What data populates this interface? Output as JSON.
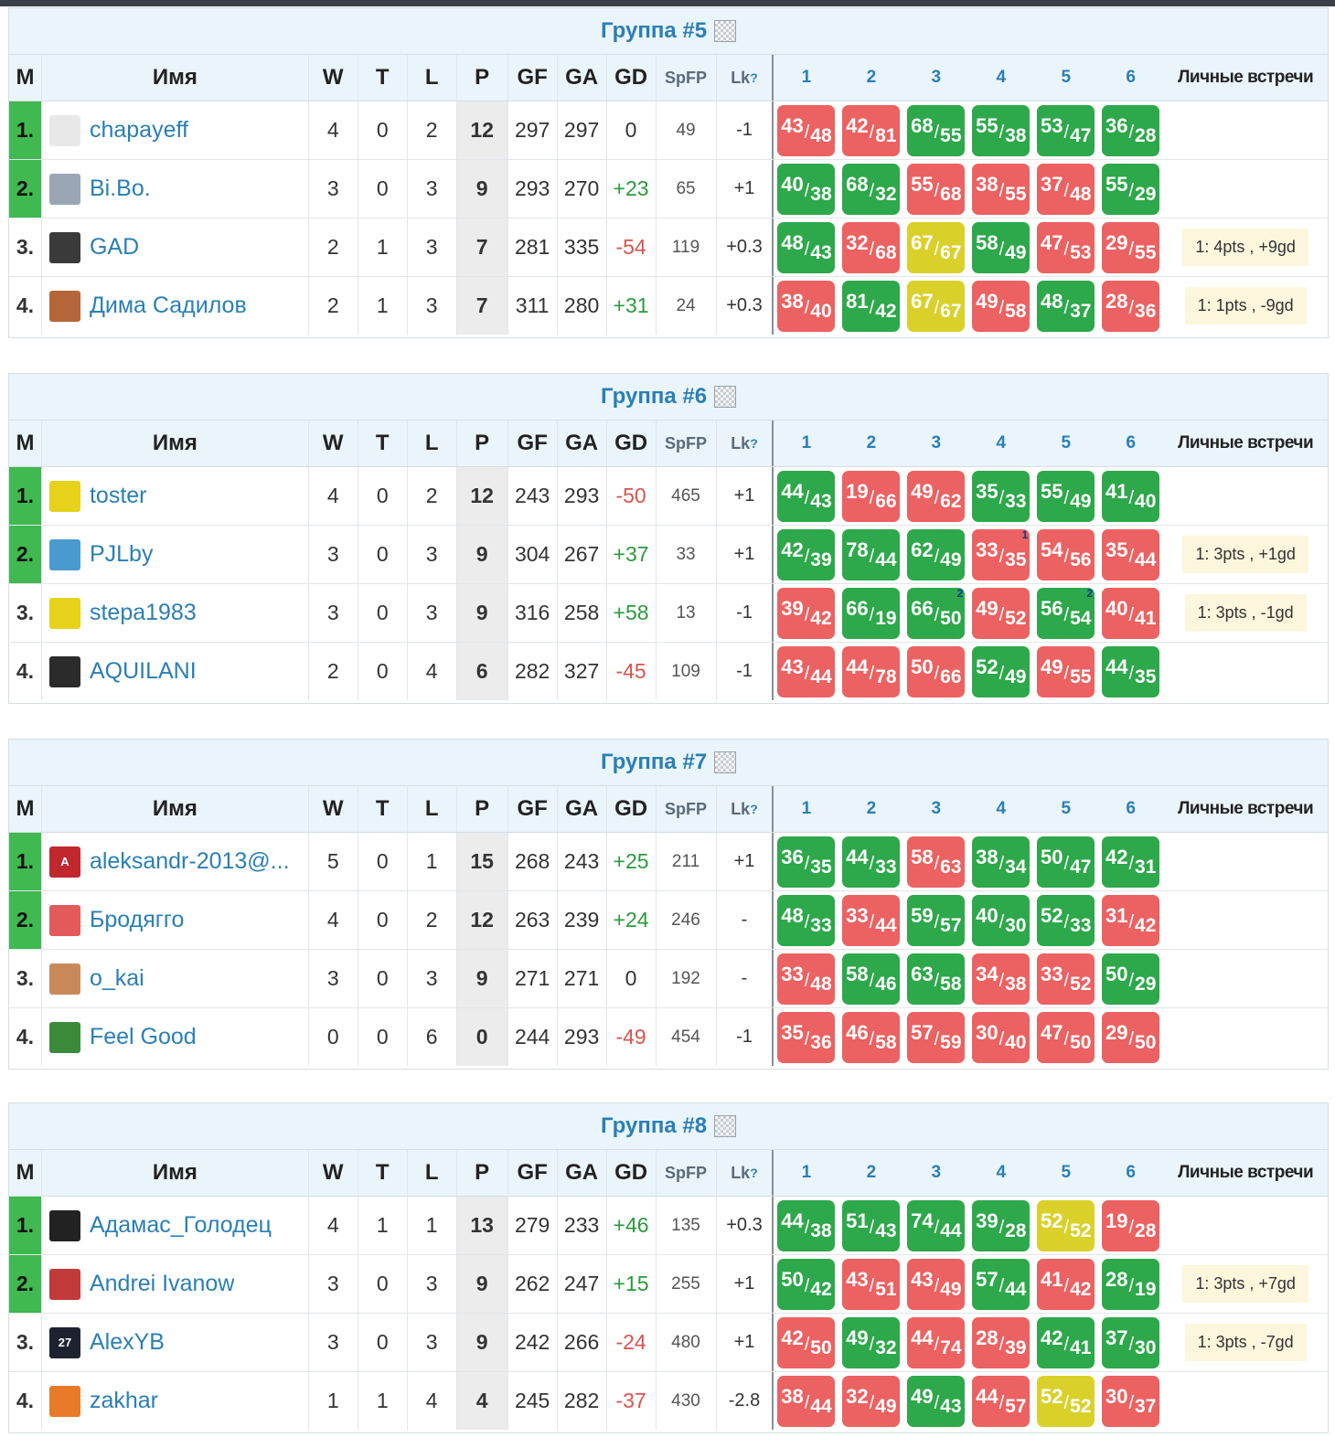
{
  "headers": {
    "m": "M",
    "name": "Имя",
    "w": "W",
    "t": "T",
    "l": "L",
    "p": "P",
    "gf": "GF",
    "ga": "GA",
    "gd": "GD",
    "spfp": "SpFP",
    "lk": "Lk",
    "lk_sup": "?",
    "cols": [
      "1",
      "2",
      "3",
      "4",
      "5",
      "6"
    ],
    "lv": "Личные встречи"
  },
  "groups": [
    {
      "title": "Группа #5",
      "rows": [
        {
          "rank": "1.",
          "qual": true,
          "avatar_color": "#e8e8e8",
          "avatar_text": "",
          "name": "chapayeff",
          "w": "4",
          "t": "0",
          "l": "2",
          "p": "12",
          "gf": "297",
          "ga": "297",
          "gd": "0",
          "gd_color": "#333",
          "spfp": "49",
          "lk": "-1",
          "res": [
            {
              "a": "43",
              "b": "48",
              "c": "red"
            },
            {
              "a": "42",
              "b": "81",
              "c": "red"
            },
            {
              "a": "68",
              "b": "55",
              "c": "green"
            },
            {
              "a": "55",
              "b": "38",
              "c": "green"
            },
            {
              "a": "53",
              "b": "47",
              "c": "green"
            },
            {
              "a": "36",
              "b": "28",
              "c": "green"
            }
          ],
          "lv": ""
        },
        {
          "rank": "2.",
          "qual": true,
          "avatar_color": "#9aa6b5",
          "avatar_text": "",
          "name": "Bi.Bo.",
          "w": "3",
          "t": "0",
          "l": "3",
          "p": "9",
          "gf": "293",
          "ga": "270",
          "gd": "+23",
          "gd_color": "#2a9a3a",
          "spfp": "65",
          "lk": "+1",
          "res": [
            {
              "a": "40",
              "b": "38",
              "c": "green"
            },
            {
              "a": "68",
              "b": "32",
              "c": "green"
            },
            {
              "a": "55",
              "b": "68",
              "c": "red"
            },
            {
              "a": "38",
              "b": "55",
              "c": "red"
            },
            {
              "a": "37",
              "b": "48",
              "c": "red"
            },
            {
              "a": "55",
              "b": "29",
              "c": "green"
            }
          ],
          "lv": ""
        },
        {
          "rank": "3.",
          "qual": false,
          "avatar_color": "#3a3a3a",
          "avatar_text": "",
          "name": "GAD",
          "w": "2",
          "t": "1",
          "l": "3",
          "p": "7",
          "gf": "281",
          "ga": "335",
          "gd": "-54",
          "gd_color": "#d9534f",
          "spfp": "119",
          "lk": "+0.3",
          "res": [
            {
              "a": "48",
              "b": "43",
              "c": "green"
            },
            {
              "a": "32",
              "b": "68",
              "c": "red"
            },
            {
              "a": "67",
              "b": "67",
              "c": "yellow"
            },
            {
              "a": "58",
              "b": "49",
              "c": "green"
            },
            {
              "a": "47",
              "b": "53",
              "c": "red"
            },
            {
              "a": "29",
              "b": "55",
              "c": "red"
            }
          ],
          "lv": "1: 4pts , +9gd"
        },
        {
          "rank": "4.",
          "qual": false,
          "avatar_color": "#b5653a",
          "avatar_text": "",
          "name": "Дима Садилов",
          "w": "2",
          "t": "1",
          "l": "3",
          "p": "7",
          "gf": "311",
          "ga": "280",
          "gd": "+31",
          "gd_color": "#2a9a3a",
          "spfp": "24",
          "lk": "+0.3",
          "res": [
            {
              "a": "38",
              "b": "40",
              "c": "red"
            },
            {
              "a": "81",
              "b": "42",
              "c": "green"
            },
            {
              "a": "67",
              "b": "67",
              "c": "yellow"
            },
            {
              "a": "49",
              "b": "58",
              "c": "red"
            },
            {
              "a": "48",
              "b": "37",
              "c": "green"
            },
            {
              "a": "28",
              "b": "36",
              "c": "red"
            }
          ],
          "lv": "1: 1pts , -9gd"
        }
      ]
    },
    {
      "title": "Группа #6",
      "rows": [
        {
          "rank": "1.",
          "qual": true,
          "avatar_color": "#e6d21a",
          "avatar_text": "",
          "name": "toster",
          "w": "4",
          "t": "0",
          "l": "2",
          "p": "12",
          "gf": "243",
          "ga": "293",
          "gd": "-50",
          "gd_color": "#d9534f",
          "spfp": "465",
          "lk": "+1",
          "res": [
            {
              "a": "44",
              "b": "43",
              "c": "green"
            },
            {
              "a": "19",
              "b": "66",
              "c": "red"
            },
            {
              "a": "49",
              "b": "62",
              "c": "red"
            },
            {
              "a": "35",
              "b": "33",
              "c": "green"
            },
            {
              "a": "55",
              "b": "49",
              "c": "green"
            },
            {
              "a": "41",
              "b": "40",
              "c": "green"
            }
          ],
          "lv": ""
        },
        {
          "rank": "2.",
          "qual": true,
          "avatar_color": "#4a9ad0",
          "avatar_text": "",
          "name": "PJLby",
          "w": "3",
          "t": "0",
          "l": "3",
          "p": "9",
          "gf": "304",
          "ga": "267",
          "gd": "+37",
          "gd_color": "#2a9a3a",
          "spfp": "33",
          "lk": "+1",
          "res": [
            {
              "a": "42",
              "b": "39",
              "c": "green"
            },
            {
              "a": "78",
              "b": "44",
              "c": "green"
            },
            {
              "a": "62",
              "b": "49",
              "c": "green"
            },
            {
              "a": "33",
              "b": "35",
              "c": "red",
              "x": "1"
            },
            {
              "a": "54",
              "b": "56",
              "c": "red"
            },
            {
              "a": "35",
              "b": "44",
              "c": "red"
            }
          ],
          "lv": "1: 3pts , +1gd"
        },
        {
          "rank": "3.",
          "qual": false,
          "avatar_color": "#e6d21a",
          "avatar_text": "",
          "name": "stepa1983",
          "w": "3",
          "t": "0",
          "l": "3",
          "p": "9",
          "gf": "316",
          "ga": "258",
          "gd": "+58",
          "gd_color": "#2a9a3a",
          "spfp": "13",
          "lk": "-1",
          "res": [
            {
              "a": "39",
              "b": "42",
              "c": "red"
            },
            {
              "a": "66",
              "b": "19",
              "c": "green"
            },
            {
              "a": "66",
              "b": "50",
              "c": "green",
              "x": "2"
            },
            {
              "a": "49",
              "b": "52",
              "c": "red"
            },
            {
              "a": "56",
              "b": "54",
              "c": "green",
              "x": "2"
            },
            {
              "a": "40",
              "b": "41",
              "c": "red"
            }
          ],
          "lv": "1: 3pts , -1gd"
        },
        {
          "rank": "4.",
          "qual": false,
          "avatar_color": "#2b2b2b",
          "avatar_text": "",
          "name": "AQUILANI",
          "w": "2",
          "t": "0",
          "l": "4",
          "p": "6",
          "gf": "282",
          "ga": "327",
          "gd": "-45",
          "gd_color": "#d9534f",
          "spfp": "109",
          "lk": "-1",
          "res": [
            {
              "a": "43",
              "b": "44",
              "c": "red"
            },
            {
              "a": "44",
              "b": "78",
              "c": "red"
            },
            {
              "a": "50",
              "b": "66",
              "c": "red"
            },
            {
              "a": "52",
              "b": "49",
              "c": "green"
            },
            {
              "a": "49",
              "b": "55",
              "c": "red"
            },
            {
              "a": "44",
              "b": "35",
              "c": "green"
            }
          ],
          "lv": ""
        }
      ]
    },
    {
      "title": "Группа #7",
      "rows": [
        {
          "rank": "1.",
          "qual": true,
          "avatar_color": "#c0282d",
          "avatar_text": "A",
          "name": "aleksandr-2013@...",
          "w": "5",
          "t": "0",
          "l": "1",
          "p": "15",
          "gf": "268",
          "ga": "243",
          "gd": "+25",
          "gd_color": "#2a9a3a",
          "spfp": "211",
          "lk": "+1",
          "res": [
            {
              "a": "36",
              "b": "35",
              "c": "green"
            },
            {
              "a": "44",
              "b": "33",
              "c": "green"
            },
            {
              "a": "58",
              "b": "63",
              "c": "red"
            },
            {
              "a": "38",
              "b": "34",
              "c": "green"
            },
            {
              "a": "50",
              "b": "47",
              "c": "green"
            },
            {
              "a": "42",
              "b": "31",
              "c": "green"
            }
          ],
          "lv": ""
        },
        {
          "rank": "2.",
          "qual": true,
          "avatar_color": "#e35a5a",
          "avatar_text": "",
          "name": "Бродягго",
          "w": "4",
          "t": "0",
          "l": "2",
          "p": "12",
          "gf": "263",
          "ga": "239",
          "gd": "+24",
          "gd_color": "#2a9a3a",
          "spfp": "246",
          "lk": "-",
          "res": [
            {
              "a": "48",
              "b": "33",
              "c": "green"
            },
            {
              "a": "33",
              "b": "44",
              "c": "red"
            },
            {
              "a": "59",
              "b": "57",
              "c": "green"
            },
            {
              "a": "40",
              "b": "30",
              "c": "green"
            },
            {
              "a": "52",
              "b": "33",
              "c": "green"
            },
            {
              "a": "31",
              "b": "42",
              "c": "red"
            }
          ],
          "lv": ""
        },
        {
          "rank": "3.",
          "qual": false,
          "avatar_color": "#c9885a",
          "avatar_text": "",
          "name": "o_kai",
          "w": "3",
          "t": "0",
          "l": "3",
          "p": "9",
          "gf": "271",
          "ga": "271",
          "gd": "0",
          "gd_color": "#333",
          "spfp": "192",
          "lk": "-",
          "res": [
            {
              "a": "33",
              "b": "48",
              "c": "red"
            },
            {
              "a": "58",
              "b": "46",
              "c": "green"
            },
            {
              "a": "63",
              "b": "58",
              "c": "green"
            },
            {
              "a": "34",
              "b": "38",
              "c": "red"
            },
            {
              "a": "33",
              "b": "52",
              "c": "red"
            },
            {
              "a": "50",
              "b": "29",
              "c": "green"
            }
          ],
          "lv": ""
        },
        {
          "rank": "4.",
          "qual": false,
          "avatar_color": "#3a8a3a",
          "avatar_text": "",
          "name": "Feel Good",
          "w": "0",
          "t": "0",
          "l": "6",
          "p": "0",
          "gf": "244",
          "ga": "293",
          "gd": "-49",
          "gd_color": "#d9534f",
          "spfp": "454",
          "lk": "-1",
          "res": [
            {
              "a": "35",
              "b": "36",
              "c": "red"
            },
            {
              "a": "46",
              "b": "58",
              "c": "red"
            },
            {
              "a": "57",
              "b": "59",
              "c": "red"
            },
            {
              "a": "30",
              "b": "40",
              "c": "red"
            },
            {
              "a": "47",
              "b": "50",
              "c": "red"
            },
            {
              "a": "29",
              "b": "50",
              "c": "red"
            }
          ],
          "lv": ""
        }
      ]
    },
    {
      "title": "Группа #8",
      "rows": [
        {
          "rank": "1.",
          "qual": true,
          "avatar_color": "#222222",
          "avatar_text": "",
          "name": "Адамас_Голодец",
          "w": "4",
          "t": "1",
          "l": "1",
          "p": "13",
          "gf": "279",
          "ga": "233",
          "gd": "+46",
          "gd_color": "#2a9a3a",
          "spfp": "135",
          "lk": "+0.3",
          "res": [
            {
              "a": "44",
              "b": "38",
              "c": "green"
            },
            {
              "a": "51",
              "b": "43",
              "c": "green"
            },
            {
              "a": "74",
              "b": "44",
              "c": "green"
            },
            {
              "a": "39",
              "b": "28",
              "c": "green"
            },
            {
              "a": "52",
              "b": "52",
              "c": "yellow"
            },
            {
              "a": "19",
              "b": "28",
              "c": "red"
            }
          ],
          "lv": ""
        },
        {
          "rank": "2.",
          "qual": true,
          "avatar_color": "#c23a3a",
          "avatar_text": "",
          "name": "Andrei Ivanow",
          "w": "3",
          "t": "0",
          "l": "3",
          "p": "9",
          "gf": "262",
          "ga": "247",
          "gd": "+15",
          "gd_color": "#2a9a3a",
          "spfp": "255",
          "lk": "+1",
          "res": [
            {
              "a": "50",
              "b": "42",
              "c": "green"
            },
            {
              "a": "43",
              "b": "51",
              "c": "red"
            },
            {
              "a": "43",
              "b": "49",
              "c": "red"
            },
            {
              "a": "57",
              "b": "44",
              "c": "green"
            },
            {
              "a": "41",
              "b": "42",
              "c": "red"
            },
            {
              "a": "28",
              "b": "19",
              "c": "green"
            }
          ],
          "lv": "1: 3pts , +7gd"
        },
        {
          "rank": "3.",
          "qual": false,
          "avatar_color": "#1e2230",
          "avatar_text": "27",
          "name": "AlexYB",
          "w": "3",
          "t": "0",
          "l": "3",
          "p": "9",
          "gf": "242",
          "ga": "266",
          "gd": "-24",
          "gd_color": "#d9534f",
          "spfp": "480",
          "lk": "+1",
          "res": [
            {
              "a": "42",
              "b": "50",
              "c": "red"
            },
            {
              "a": "49",
              "b": "32",
              "c": "green"
            },
            {
              "a": "44",
              "b": "74",
              "c": "red"
            },
            {
              "a": "28",
              "b": "39",
              "c": "red"
            },
            {
              "a": "42",
              "b": "41",
              "c": "green"
            },
            {
              "a": "37",
              "b": "30",
              "c": "green"
            }
          ],
          "lv": "1: 3pts , -7gd"
        },
        {
          "rank": "4.",
          "qual": false,
          "avatar_color": "#e87a2a",
          "avatar_text": "",
          "name": "zakhar",
          "w": "1",
          "t": "1",
          "l": "4",
          "p": "4",
          "gf": "245",
          "ga": "282",
          "gd": "-37",
          "gd_color": "#d9534f",
          "spfp": "430",
          "lk": "-2.8",
          "res": [
            {
              "a": "38",
              "b": "44",
              "c": "red"
            },
            {
              "a": "32",
              "b": "49",
              "c": "red"
            },
            {
              "a": "49",
              "b": "43",
              "c": "green"
            },
            {
              "a": "44",
              "b": "57",
              "c": "red"
            },
            {
              "a": "52",
              "b": "52",
              "c": "yellow"
            },
            {
              "a": "30",
              "b": "37",
              "c": "red"
            }
          ],
          "lv": ""
        }
      ]
    }
  ]
}
